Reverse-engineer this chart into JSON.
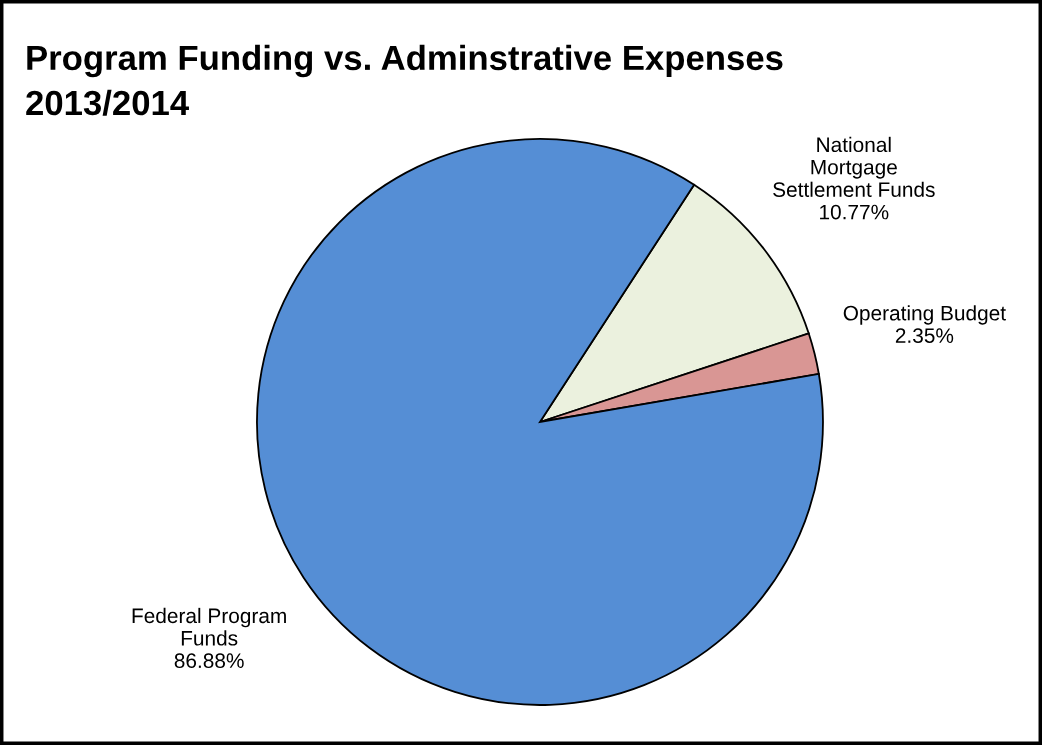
{
  "chart_data": {
    "type": "pie",
    "title": "Program Funding vs. Adminstrative Expenses\n2013/2014",
    "categories": [
      "National\nMortgage\nSettlement Funds",
      "Operating Budget",
      "Federal Program\nFunds"
    ],
    "values": [
      10.77,
      2.35,
      86.88
    ],
    "value_labels": [
      "10.77%",
      "2.35%",
      "86.88%"
    ],
    "colors": [
      "#ebf1de",
      "#d99694",
      "#558ed5"
    ],
    "legend": false
  }
}
